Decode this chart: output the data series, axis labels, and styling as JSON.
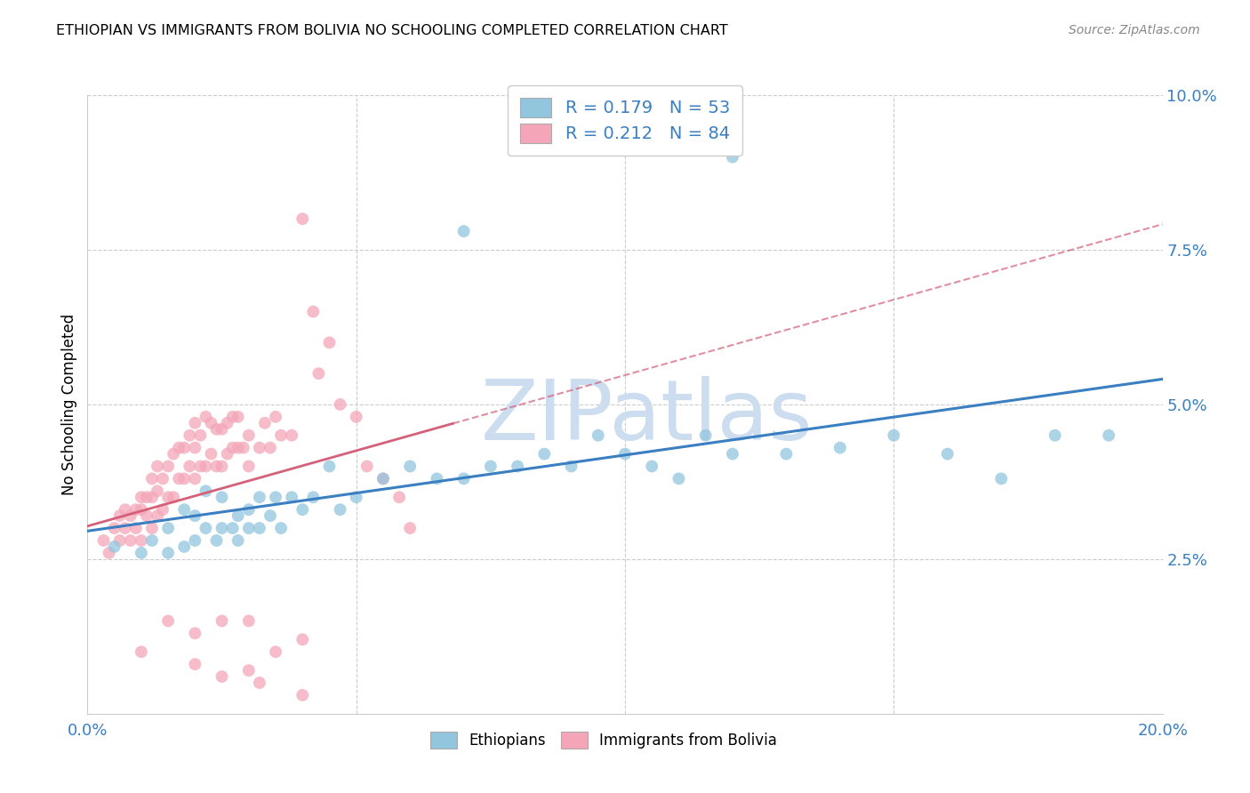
{
  "title": "ETHIOPIAN VS IMMIGRANTS FROM BOLIVIA NO SCHOOLING COMPLETED CORRELATION CHART",
  "source": "Source: ZipAtlas.com",
  "ylabel": "No Schooling Completed",
  "xlim": [
    0,
    0.2
  ],
  "ylim": [
    0,
    0.1
  ],
  "xtick_positions": [
    0.0,
    0.05,
    0.1,
    0.15,
    0.2
  ],
  "xtick_labels": [
    "0.0%",
    "",
    "",
    "",
    "20.0%"
  ],
  "yticks_right": [
    0.025,
    0.05,
    0.075,
    0.1
  ],
  "ytick_right_labels": [
    "2.5%",
    "5.0%",
    "7.5%",
    "10.0%"
  ],
  "blue_R": 0.179,
  "blue_N": 53,
  "pink_R": 0.212,
  "pink_N": 84,
  "blue_color": "#92c5de",
  "pink_color": "#f4a6b8",
  "blue_line_color": "#3a7fc1",
  "pink_line_color": "#d4607a",
  "watermark": "ZIPatlas",
  "watermark_color": "#ccddf0",
  "background_color": "#ffffff",
  "grid_color": "#cccccc",
  "blue_scatter_x": [
    0.005,
    0.01,
    0.012,
    0.015,
    0.015,
    0.018,
    0.018,
    0.02,
    0.02,
    0.022,
    0.022,
    0.024,
    0.025,
    0.025,
    0.027,
    0.028,
    0.028,
    0.03,
    0.03,
    0.032,
    0.032,
    0.034,
    0.035,
    0.036,
    0.038,
    0.04,
    0.042,
    0.045,
    0.047,
    0.05,
    0.055,
    0.06,
    0.065,
    0.07,
    0.075,
    0.08,
    0.085,
    0.09,
    0.095,
    0.1,
    0.105,
    0.11,
    0.115,
    0.12,
    0.13,
    0.14,
    0.15,
    0.16,
    0.17,
    0.18,
    0.19,
    0.07,
    0.12
  ],
  "blue_scatter_y": [
    0.027,
    0.026,
    0.028,
    0.026,
    0.03,
    0.027,
    0.033,
    0.028,
    0.032,
    0.03,
    0.036,
    0.028,
    0.03,
    0.035,
    0.03,
    0.028,
    0.032,
    0.03,
    0.033,
    0.03,
    0.035,
    0.032,
    0.035,
    0.03,
    0.035,
    0.033,
    0.035,
    0.04,
    0.033,
    0.035,
    0.038,
    0.04,
    0.038,
    0.038,
    0.04,
    0.04,
    0.042,
    0.04,
    0.045,
    0.042,
    0.04,
    0.038,
    0.045,
    0.042,
    0.042,
    0.043,
    0.045,
    0.042,
    0.038,
    0.045,
    0.045,
    0.078,
    0.09
  ],
  "pink_scatter_x": [
    0.003,
    0.004,
    0.005,
    0.006,
    0.006,
    0.007,
    0.007,
    0.008,
    0.008,
    0.009,
    0.009,
    0.01,
    0.01,
    0.01,
    0.011,
    0.011,
    0.012,
    0.012,
    0.012,
    0.013,
    0.013,
    0.013,
    0.014,
    0.014,
    0.015,
    0.015,
    0.016,
    0.016,
    0.017,
    0.017,
    0.018,
    0.018,
    0.019,
    0.019,
    0.02,
    0.02,
    0.02,
    0.021,
    0.021,
    0.022,
    0.022,
    0.023,
    0.023,
    0.024,
    0.024,
    0.025,
    0.025,
    0.026,
    0.026,
    0.027,
    0.027,
    0.028,
    0.028,
    0.029,
    0.03,
    0.03,
    0.032,
    0.033,
    0.034,
    0.035,
    0.036,
    0.038,
    0.04,
    0.042,
    0.043,
    0.045,
    0.047,
    0.05,
    0.052,
    0.055,
    0.058,
    0.06,
    0.01,
    0.02,
    0.03,
    0.04,
    0.015,
    0.025,
    0.035,
    0.02,
    0.03,
    0.025,
    0.032,
    0.04
  ],
  "pink_scatter_y": [
    0.028,
    0.026,
    0.03,
    0.028,
    0.032,
    0.03,
    0.033,
    0.028,
    0.032,
    0.03,
    0.033,
    0.028,
    0.033,
    0.035,
    0.032,
    0.035,
    0.03,
    0.035,
    0.038,
    0.032,
    0.036,
    0.04,
    0.033,
    0.038,
    0.035,
    0.04,
    0.035,
    0.042,
    0.038,
    0.043,
    0.038,
    0.043,
    0.04,
    0.045,
    0.038,
    0.043,
    0.047,
    0.04,
    0.045,
    0.04,
    0.048,
    0.042,
    0.047,
    0.04,
    0.046,
    0.04,
    0.046,
    0.042,
    0.047,
    0.043,
    0.048,
    0.043,
    0.048,
    0.043,
    0.04,
    0.045,
    0.043,
    0.047,
    0.043,
    0.048,
    0.045,
    0.045,
    0.08,
    0.065,
    0.055,
    0.06,
    0.05,
    0.048,
    0.04,
    0.038,
    0.035,
    0.03,
    0.01,
    0.013,
    0.015,
    0.012,
    0.015,
    0.015,
    0.01,
    0.008,
    0.007,
    0.006,
    0.005,
    0.003
  ]
}
